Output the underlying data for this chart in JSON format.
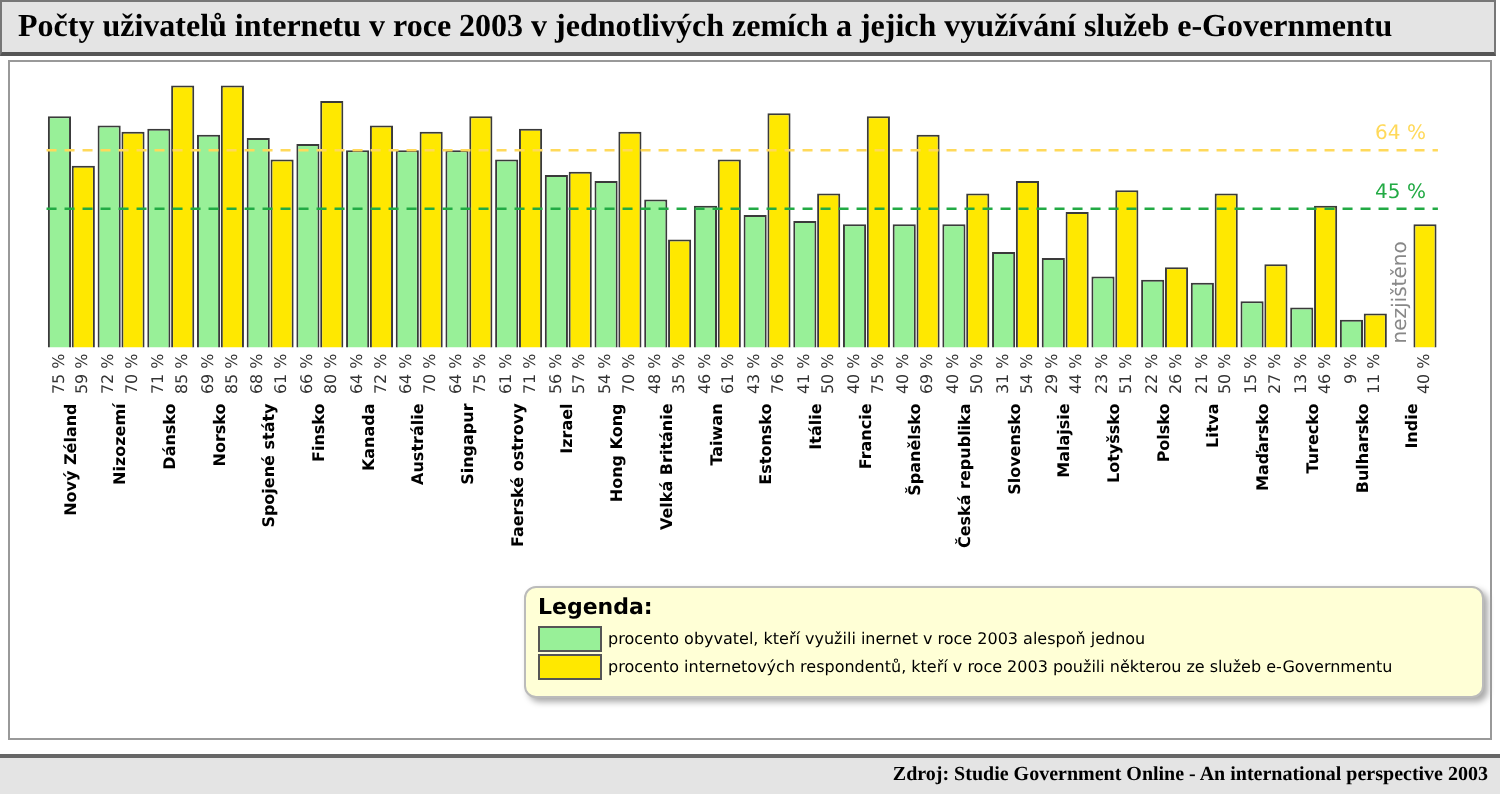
{
  "chart_data": {
    "type": "bar",
    "title": "Počty uživatelů internetu v roce 2003 v jednotlivých zemích a jejich využívání služeb e-Governmentu",
    "categories": [
      "Nový Zéland",
      "Nizozemí",
      "Dánsko",
      "Norsko",
      "Spojené státy",
      "Finsko",
      "Kanada",
      "Austrálie",
      "Singapur",
      "Faerské ostrovy",
      "Izrael",
      "Hong Kong",
      "Velká Británie",
      "Taiwan",
      "Estonsko",
      "Itálie",
      "Francie",
      "Španělsko",
      "Česká republika",
      "Slovensko",
      "Malajsie",
      "Lotyšsko",
      "Polsko",
      "Litva",
      "Maďarsko",
      "Turecko",
      "Bulharsko",
      "Indie"
    ],
    "series": [
      {
        "name": "procento obyvatel, kteří využili inernet v roce 2003 alespoň jednou",
        "color": "#98f098",
        "values": [
          75,
          72,
          71,
          69,
          68,
          66,
          64,
          64,
          64,
          61,
          56,
          54,
          48,
          46,
          43,
          41,
          40,
          40,
          40,
          31,
          29,
          23,
          22,
          21,
          15,
          13,
          9,
          null
        ],
        "value_labels": [
          "75 %",
          "72 %",
          "71 %",
          "69 %",
          "68 %",
          "66 %",
          "64 %",
          "64 %",
          "64 %",
          "61 %",
          "56 %",
          "54 %",
          "48 %",
          "46 %",
          "43 %",
          "41 %",
          "40 %",
          "40 %",
          "40 %",
          "31 %",
          "29 %",
          "23 %",
          "22 %",
          "21 %",
          "15 %",
          "13 %",
          "9 %",
          null
        ]
      },
      {
        "name": "procento internetových respondentů, kteří v roce 2003 použili některou ze služeb e-Governmentu",
        "color": "#ffe800",
        "values": [
          59,
          70,
          85,
          85,
          61,
          80,
          72,
          70,
          75,
          71,
          57,
          70,
          35,
          61,
          76,
          50,
          75,
          69,
          50,
          54,
          44,
          51,
          26,
          50,
          27,
          46,
          11,
          40
        ],
        "value_labels": [
          "59 %",
          "70 %",
          "85 %",
          "85 %",
          "61 %",
          "80 %",
          "72 %",
          "70 %",
          "75 %",
          "71 %",
          "57 %",
          "70 %",
          "35 %",
          "61 %",
          "76 %",
          "50 %",
          "75 %",
          "69 %",
          "50 %",
          "54 %",
          "44 %",
          "51 %",
          "26 %",
          "50 %",
          "27 %",
          "46 %",
          "11 %",
          "40 %"
        ]
      }
    ],
    "ylim": [
      0,
      92
    ],
    "ref_lines": [
      {
        "axis": "y",
        "value": 64,
        "label": "64 %",
        "color": "#ffd95a",
        "line_style": "dashed"
      },
      {
        "axis": "y",
        "value": 45,
        "label": "45 %",
        "color": "#22aa44",
        "line_style": "dashed"
      }
    ],
    "legend": "bottom right",
    "legend_title": "Legenda:",
    "annotations": [
      {
        "text": "nezjištěno",
        "x": "Indie",
        "y": 0
      },
      "Zdroj: Studie Government Online - An international perspective 2003"
    ]
  }
}
